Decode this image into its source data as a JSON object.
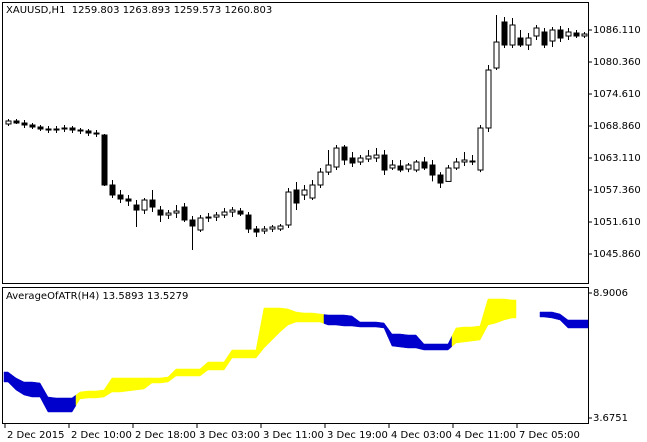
{
  "chart_data": [
    {
      "type": "candlestick",
      "title": "XAUUSD,H1  1259.803 1263.893 1259.573 1260.803",
      "categories": [
        "2 Dec 2015",
        null,
        null,
        null,
        null,
        null,
        null,
        null,
        "2 Dec 10:00",
        null,
        null,
        null,
        null,
        null,
        null,
        null,
        "2 Dec 18:00",
        null,
        null,
        null,
        null,
        null,
        null,
        null,
        "3 Dec 03:00",
        null,
        null,
        null,
        null,
        null,
        null,
        null,
        "3 Dec 11:00",
        null,
        null,
        null,
        null,
        null,
        null,
        null,
        "3 Dec 19:00",
        null,
        null,
        null,
        null,
        null,
        null,
        null,
        "4 Dec 03:00",
        null,
        null,
        null,
        null,
        null,
        null,
        null,
        "4 Dec 11:00",
        null,
        null,
        null,
        null,
        null,
        null,
        null,
        "7 Dec 05:00",
        null,
        null,
        null,
        null,
        null,
        null,
        null,
        null
      ],
      "open": [
        1069.22,
        1069.76,
        1069.4,
        1069.04,
        1068.68,
        1068.32,
        1068.14,
        1068.32,
        1068.5,
        1068.14,
        1067.96,
        1067.6,
        1067.24,
        1058.26,
        1056.46,
        1055.74,
        1054.66,
        1053.76,
        1055.56,
        1053.76,
        1052.86,
        1053.22,
        1054.3,
        1051.97,
        1050.17,
        1052.33,
        1052.5,
        1052.86,
        1053.4,
        1053.58,
        1052.86,
        1050.35,
        1049.99,
        1050.35,
        1050.35,
        1051.07,
        1057.36,
        1056.46,
        1055.92,
        1058.26,
        1060.58,
        1061.49,
        1065.08,
        1063.11,
        1062.39,
        1062.93,
        1063.11,
        1063.64,
        1061.31,
        1061.67,
        1061.13,
        1060.95,
        1062.39,
        1061.85,
        1060.05,
        1058.9,
        1061.31,
        1062.39,
        1062.57,
        1060.95,
        1068.5,
        1079.28,
        1087.55,
        1083.41,
        1084.67,
        1083.41,
        1085.03,
        1085.75,
        1084.13,
        1086.11,
        1085.03,
        1085.57,
        1085.03
      ],
      "high": [
        1070.12,
        1070.12,
        1069.94,
        1069.4,
        1069.04,
        1068.86,
        1068.86,
        1069.04,
        1068.86,
        1068.5,
        1068.32,
        1068.14,
        1067.42,
        1059.15,
        1057.36,
        1056.46,
        1055.56,
        1055.92,
        1057.36,
        1054.48,
        1053.76,
        1054.66,
        1055.02,
        1052.68,
        1052.86,
        1053.22,
        1053.4,
        1054.12,
        1054.3,
        1054.12,
        1053.4,
        1050.89,
        1050.89,
        1051.07,
        1051.25,
        1057.72,
        1058.79,
        1058.26,
        1059.15,
        1061.31,
        1064.55,
        1065.44,
        1065.44,
        1064.19,
        1063.64,
        1064.55,
        1064.9,
        1064.55,
        1062.75,
        1062.75,
        1062.21,
        1062.75,
        1063.28,
        1062.75,
        1060.58,
        1061.85,
        1063.11,
        1064.19,
        1063.64,
        1069.04,
        1079.82,
        1088.8,
        1088.45,
        1088.27,
        1086.11,
        1085.57,
        1087.01,
        1086.47,
        1086.65,
        1086.83,
        1086.47,
        1086.11,
        1085.75
      ],
      "low": [
        1068.86,
        1069.22,
        1068.5,
        1068.32,
        1067.96,
        1067.6,
        1067.6,
        1067.78,
        1067.6,
        1067.42,
        1067.06,
        1066.88,
        1058.08,
        1055.92,
        1055.02,
        1054.48,
        1050.71,
        1053.04,
        1053.4,
        1051.61,
        1052.15,
        1052.33,
        1051.61,
        1046.58,
        1049.81,
        1051.61,
        1051.79,
        1052.33,
        1052.5,
        1052.68,
        1049.63,
        1048.91,
        1049.45,
        1049.81,
        1049.99,
        1050.53,
        1053.76,
        1055.56,
        1055.56,
        1057.72,
        1060.05,
        1060.95,
        1061.85,
        1061.49,
        1061.85,
        1062.39,
        1062.39,
        1060.05,
        1060.95,
        1060.58,
        1060.58,
        1060.58,
        1060.95,
        1058.9,
        1057.72,
        1059.15,
        1060.95,
        1061.67,
        1061.85,
        1060.58,
        1067.78,
        1078.92,
        1082.87,
        1082.87,
        1083.05,
        1082.52,
        1084.31,
        1082.87,
        1083.05,
        1083.95,
        1084.31,
        1084.67,
        1084.67
      ],
      "close": [
        1069.76,
        1069.4,
        1069.04,
        1068.68,
        1068.32,
        1068.14,
        1068.32,
        1068.5,
        1068.14,
        1067.96,
        1067.6,
        1067.42,
        1058.26,
        1056.46,
        1055.74,
        1055.38,
        1053.76,
        1055.56,
        1054.3,
        1052.86,
        1053.22,
        1053.58,
        1051.97,
        1050.89,
        1052.33,
        1052.5,
        1052.86,
        1053.4,
        1053.76,
        1053.04,
        1050.35,
        1049.81,
        1050.35,
        1050.71,
        1050.89,
        1057.0,
        1055.02,
        1057.36,
        1058.26,
        1060.58,
        1061.85,
        1064.9,
        1062.75,
        1062.21,
        1063.11,
        1063.46,
        1063.64,
        1060.95,
        1061.85,
        1060.95,
        1061.85,
        1062.39,
        1061.31,
        1060.05,
        1058.61,
        1061.31,
        1062.39,
        1062.75,
        1062.39,
        1068.5,
        1078.92,
        1083.95,
        1083.41,
        1087.01,
        1083.41,
        1084.67,
        1086.47,
        1083.41,
        1086.11,
        1084.67,
        1085.75,
        1085.03,
        1085.39
      ],
      "ylim": [
        1040.65,
        1091.14
      ],
      "yticks": [
        {
          "value": 1086.11,
          "label": "1086.110"
        },
        {
          "value": 1080.36,
          "label": "1080.360"
        },
        {
          "value": 1074.61,
          "label": "1074.610"
        },
        {
          "value": 1068.86,
          "label": "1068.860"
        },
        {
          "value": 1063.11,
          "label": "1063.110"
        },
        {
          "value": 1057.36,
          "label": "1057.360"
        },
        {
          "value": 1051.61,
          "label": "1051.610"
        },
        {
          "value": 1045.86,
          "label": "1045.860"
        }
      ]
    },
    {
      "type": "band",
      "title": "AverageOfATR(H4) 13.5893 13.5279",
      "upper": [
        5.598,
        5.348,
        5.18,
        5.18,
        5.139,
        4.553,
        4.512,
        4.512,
        4.512,
        4.762,
        4.804,
        4.804,
        4.846,
        5.348,
        5.348,
        5.348,
        5.348,
        5.348,
        5.348,
        5.348,
        5.389,
        5.724,
        5.724,
        5.724,
        5.724,
        6.016,
        6.016,
        6.016,
        6.518,
        6.518,
        6.518,
        6.518,
        8.274,
        8.274,
        8.274,
        8.232,
        8.106,
        8.065,
        8.065,
        8.023,
        7.981,
        7.981,
        7.981,
        7.939,
        7.688,
        7.688,
        7.688,
        7.647,
        7.187,
        7.187,
        7.145,
        7.145,
        6.769,
        6.769,
        6.769,
        6.769,
        7.438,
        7.479,
        7.479,
        7.521,
        8.65,
        8.65,
        8.65,
        8.608,
        null,
        null,
        null,
        8.106,
        8.106,
        8.023,
        7.772,
        7.772,
        7.772
      ],
      "lower": [
        5.18,
        4.846,
        4.637,
        4.553,
        4.553,
        3.926,
        3.926,
        3.926,
        3.926,
        4.47,
        4.512,
        4.512,
        4.553,
        4.762,
        4.762,
        4.804,
        4.846,
        4.888,
        5.139,
        5.139,
        5.18,
        5.431,
        5.431,
        5.431,
        5.431,
        5.682,
        5.682,
        5.682,
        6.184,
        6.184,
        6.184,
        6.184,
        6.602,
        6.936,
        7.27,
        7.563,
        7.688,
        7.688,
        7.688,
        7.688,
        7.563,
        7.563,
        7.521,
        7.521,
        7.479,
        7.479,
        7.479,
        7.438,
        6.685,
        6.643,
        6.602,
        6.602,
        6.518,
        6.518,
        6.518,
        6.518,
        6.811,
        6.852,
        6.894,
        6.936,
        7.563,
        7.647,
        7.772,
        7.856,
        null,
        null,
        null,
        7.897,
        7.856,
        7.772,
        7.438,
        7.438,
        7.438
      ],
      "colors": [
        "#0000cc",
        "#0000cc",
        "#0000cc",
        "#0000cc",
        "#0000cc",
        "#0000cc",
        "#0000cc",
        "#0000cc",
        "#0000cc",
        "#ffff00",
        "#ffff00",
        "#ffff00",
        "#ffff00",
        "#ffff00",
        "#ffff00",
        "#ffff00",
        "#ffff00",
        "#ffff00",
        "#ffff00",
        "#ffff00",
        "#ffff00",
        "#ffff00",
        "#ffff00",
        "#ffff00",
        "#ffff00",
        "#ffff00",
        "#ffff00",
        "#ffff00",
        "#ffff00",
        "#ffff00",
        "#ffff00",
        "#ffff00",
        "#ffff00",
        "#ffff00",
        "#ffff00",
        "#ffff00",
        "#ffff00",
        "#ffff00",
        "#ffff00",
        "#ffff00",
        "#0000cc",
        "#0000cc",
        "#0000cc",
        "#0000cc",
        "#0000cc",
        "#0000cc",
        "#0000cc",
        "#0000cc",
        "#0000cc",
        "#0000cc",
        "#0000cc",
        "#0000cc",
        "#0000cc",
        "#0000cc",
        "#0000cc",
        "#0000cc",
        "#ffff00",
        "#ffff00",
        "#ffff00",
        "#ffff00",
        "#ffff00",
        "#ffff00",
        "#ffff00",
        "#ffff00",
        null,
        null,
        null,
        "#0000cc",
        "#0000cc",
        "#0000cc",
        "#0000cc",
        "#0000cc",
        "#0000cc"
      ],
      "ylim": [
        3.466,
        9.151
      ],
      "yticks": [
        8.9006,
        3.6751
      ]
    }
  ]
}
